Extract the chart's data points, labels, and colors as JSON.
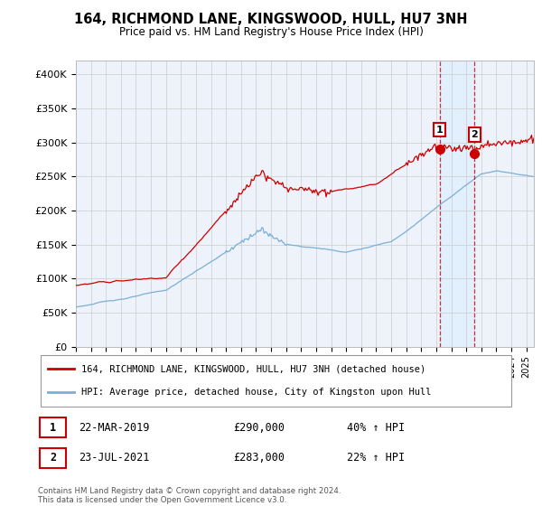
{
  "title": "164, RICHMOND LANE, KINGSWOOD, HULL, HU7 3NH",
  "subtitle": "Price paid vs. HM Land Registry's House Price Index (HPI)",
  "ylabel_ticks": [
    "£0",
    "£50K",
    "£100K",
    "£150K",
    "£200K",
    "£250K",
    "£300K",
    "£350K",
    "£400K"
  ],
  "ytick_values": [
    0,
    50000,
    100000,
    150000,
    200000,
    250000,
    300000,
    350000,
    400000
  ],
  "ylim": [
    0,
    420000
  ],
  "xlim_start": 1995.0,
  "xlim_end": 2025.5,
  "red_line_color": "#cc0000",
  "blue_line_color": "#7bafd4",
  "shade_color": "#ddeeff",
  "dashed_line_color": "#cc0000",
  "marker1_x": 2019.22,
  "marker1_y": 290000,
  "marker2_x": 2021.55,
  "marker2_y": 283000,
  "legend_label_red": "164, RICHMOND LANE, KINGSWOOD, HULL, HU7 3NH (detached house)",
  "legend_label_blue": "HPI: Average price, detached house, City of Kingston upon Hull",
  "table_row1": [
    "1",
    "22-MAR-2019",
    "£290,000",
    "40% ↑ HPI"
  ],
  "table_row2": [
    "2",
    "23-JUL-2021",
    "£283,000",
    "22% ↑ HPI"
  ],
  "footer": "Contains HM Land Registry data © Crown copyright and database right 2024.\nThis data is licensed under the Open Government Licence v3.0.",
  "background_color": "#ffffff",
  "grid_color": "#cccccc",
  "plot_bg_color": "#eef3fb"
}
